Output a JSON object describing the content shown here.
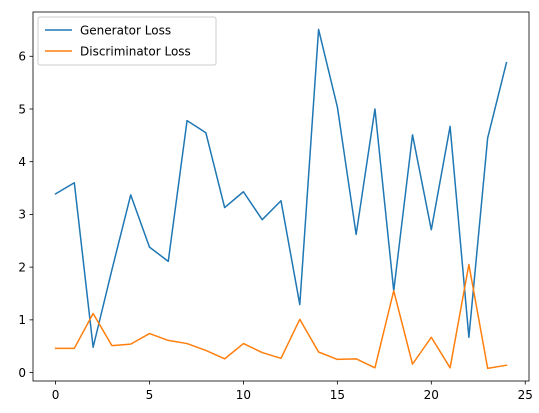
{
  "chart_data": {
    "type": "line",
    "title": "",
    "xlabel": "",
    "ylabel": "",
    "xlim": [
      -1.2,
      25.2
    ],
    "ylim": [
      -0.16,
      6.84
    ],
    "xticks": [
      0,
      5,
      10,
      15,
      20,
      25
    ],
    "yticks": [
      0,
      1,
      2,
      3,
      4,
      5,
      6
    ],
    "grid": false,
    "legend_position": "top-left",
    "x": [
      0,
      1,
      2,
      3,
      4,
      5,
      6,
      7,
      8,
      9,
      10,
      11,
      12,
      13,
      14,
      15,
      16,
      17,
      18,
      19,
      20,
      21,
      22,
      23,
      24
    ],
    "series": [
      {
        "name": "Generator Loss",
        "color": "#1f77b4",
        "values": [
          3.39,
          3.6,
          0.48,
          1.95,
          3.37,
          2.38,
          2.11,
          4.78,
          4.55,
          3.13,
          3.43,
          2.9,
          3.26,
          1.29,
          6.51,
          5.04,
          2.62,
          5.0,
          1.55,
          4.51,
          2.71,
          4.67,
          0.67,
          4.45,
          5.88
        ]
      },
      {
        "name": "Discriminator Loss",
        "color": "#ff7f0e",
        "values": [
          0.46,
          0.46,
          1.12,
          0.51,
          0.54,
          0.74,
          0.61,
          0.55,
          0.42,
          0.26,
          0.55,
          0.38,
          0.27,
          1.01,
          0.39,
          0.25,
          0.26,
          0.09,
          1.55,
          0.16,
          0.67,
          0.09,
          2.05,
          0.08,
          0.14
        ]
      }
    ]
  }
}
